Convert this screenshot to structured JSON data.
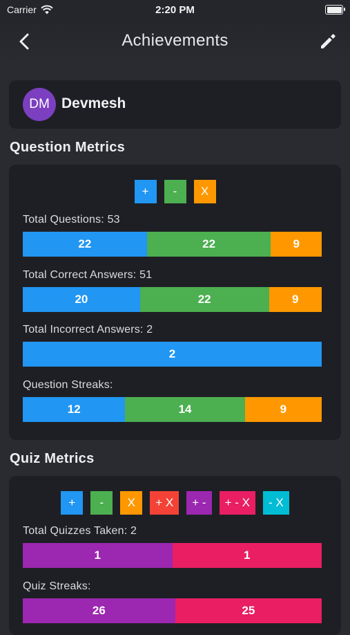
{
  "status": {
    "carrier": "Carrier",
    "time": "2:20 PM"
  },
  "nav": {
    "title": "Achievements",
    "back_icon": "chevron-left-icon",
    "edit_icon": "pencil-icon"
  },
  "user": {
    "initials": "DM",
    "name": "Devmesh",
    "avatar_color": "#7b3fc0"
  },
  "colors": {
    "plus": "#2196f3",
    "minus": "#4caf50",
    "times": "#ff9800",
    "plus_times": "#f44336",
    "plus_minus": "#9c27b0",
    "plus_minus_times": "#e91e63",
    "minus_times": "#00bcd4"
  },
  "question_metrics": {
    "title": "Question Metrics",
    "legend": [
      {
        "label": "+",
        "color": "#2196f3"
      },
      {
        "label": "-",
        "color": "#4caf50"
      },
      {
        "label": "X",
        "color": "#ff9800"
      }
    ],
    "rows": [
      {
        "label": "Total Questions: 53",
        "segments": [
          {
            "value": 22,
            "label": "22",
            "color": "#2196f3"
          },
          {
            "value": 22,
            "label": "22",
            "color": "#4caf50"
          },
          {
            "value": 9,
            "label": "9",
            "color": "#ff9800"
          }
        ]
      },
      {
        "label": "Total Correct Answers: 51",
        "segments": [
          {
            "value": 20,
            "label": "20",
            "color": "#2196f3"
          },
          {
            "value": 22,
            "label": "22",
            "color": "#4caf50"
          },
          {
            "value": 9,
            "label": "9",
            "color": "#ff9800"
          }
        ]
      },
      {
        "label": "Total Incorrect Answers: 2",
        "segments": [
          {
            "value": 2,
            "label": "2",
            "color": "#2196f3"
          }
        ]
      },
      {
        "label": "Question Streaks:",
        "segments": [
          {
            "value": 12,
            "label": "12",
            "color": "#2196f3"
          },
          {
            "value": 14,
            "label": "14",
            "color": "#4caf50"
          },
          {
            "value": 9,
            "label": "9",
            "color": "#ff9800"
          }
        ]
      }
    ]
  },
  "quiz_metrics": {
    "title": "Quiz Metrics",
    "legend": [
      {
        "label": "+",
        "color": "#2196f3"
      },
      {
        "label": "-",
        "color": "#4caf50"
      },
      {
        "label": "X",
        "color": "#ff9800"
      },
      {
        "label": "+ X",
        "color": "#f44336"
      },
      {
        "label": "+ -",
        "color": "#9c27b0"
      },
      {
        "label": "+ - X",
        "color": "#e91e63"
      },
      {
        "label": "- X",
        "color": "#00bcd4"
      }
    ],
    "rows": [
      {
        "label": "Total Quizzes Taken: 2",
        "segments": [
          {
            "value": 1,
            "label": "1",
            "color": "#9c27b0"
          },
          {
            "value": 1,
            "label": "1",
            "color": "#e91e63"
          }
        ]
      },
      {
        "label": "Quiz Streaks:",
        "segments": [
          {
            "value": 26,
            "label": "26",
            "color": "#9c27b0"
          },
          {
            "value": 25,
            "label": "25",
            "color": "#e91e63"
          }
        ]
      }
    ]
  }
}
